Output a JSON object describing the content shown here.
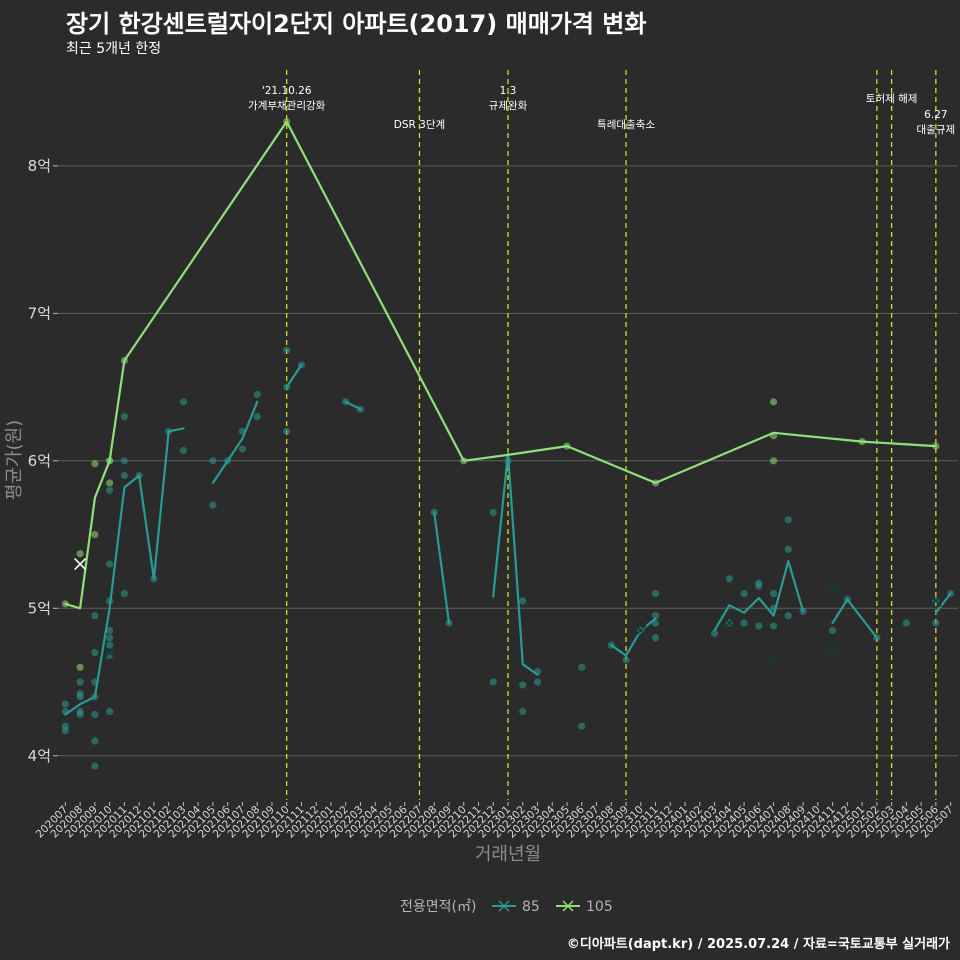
{
  "header": {
    "title": "장기 한강센트럴자이2단지 아파트(2017) 매매가격 변화",
    "subtitle": "최근 5개년 한정",
    "caption": "©디아파트(dapt.kr) / 2025.07.24 / 자료=국토교통부 실거래가"
  },
  "legend": {
    "title": "전용면적(㎡)"
  },
  "colors": {
    "s85": "#2a9a94",
    "s105": "#8fe07a",
    "vline": "#e8e81a",
    "grid": "#5e5e5e",
    "bg": "#2b2b2b"
  },
  "chart_data": {
    "type": "line",
    "xlabel": "거래년월",
    "ylabel": "평균가(원)",
    "ylim": [
      3.7,
      8.65
    ],
    "yticks": [
      4,
      5,
      6,
      7,
      8
    ],
    "ytick_labels": [
      "4억",
      "5억",
      "6억",
      "7억",
      "8억"
    ],
    "months": [
      "202007",
      "202008",
      "202009",
      "202010",
      "202011",
      "202012",
      "202101",
      "202102",
      "202103",
      "202104",
      "202105",
      "202106",
      "202107",
      "202108",
      "202109",
      "202110",
      "202111",
      "202112",
      "202201",
      "202202",
      "202203",
      "202204",
      "202205",
      "202206",
      "202207",
      "202208",
      "202209",
      "202210",
      "202211",
      "202212",
      "202301",
      "202302",
      "202303",
      "202304",
      "202305",
      "202306",
      "202307",
      "202308",
      "202309",
      "202310",
      "202311",
      "202312",
      "202401",
      "202402",
      "202403",
      "202404",
      "202405",
      "202406",
      "202407",
      "202408",
      "202409",
      "202410",
      "202411",
      "202412",
      "202501",
      "202502",
      "202503",
      "202504",
      "202505",
      "202506",
      "202507"
    ],
    "annotations": [
      {
        "x": "202110",
        "lines": [
          "'21.10.26",
          "가계부채관리강화"
        ],
        "level": 1
      },
      {
        "x": "202207",
        "lines": [
          "DSR 3단계"
        ],
        "level": 3
      },
      {
        "x": "202301",
        "lines": [
          "1.3",
          "규제완화"
        ],
        "level": 1
      },
      {
        "x": "202309",
        "lines": [
          "특례대출축소"
        ],
        "level": 3
      },
      {
        "x": "202503",
        "lines": [
          "토허제 해제"
        ],
        "level": 2
      },
      {
        "x": "202506",
        "lines": [
          "6.27",
          "대출규제"
        ],
        "level": 4
      }
    ],
    "extra_vlines": [
      "202502"
    ],
    "series": [
      {
        "name": "85",
        "key": "s85",
        "line": [
          [
            [
              "202007",
              4.28
            ],
            [
              "202008",
              4.35
            ],
            [
              "202009",
              4.4
            ],
            [
              "202010",
              5.0
            ],
            [
              "202011",
              5.82
            ],
            [
              "202012",
              5.9
            ],
            [
              "202101",
              5.2
            ],
            [
              "202102",
              6.2
            ],
            [
              "202103",
              6.22
            ]
          ],
          [
            [
              "202105",
              5.85
            ],
            [
              "202106",
              6.0
            ],
            [
              "202107",
              6.15
            ],
            [
              "202108",
              6.4
            ]
          ],
          [
            [
              "202110",
              6.5
            ],
            [
              "202111",
              6.65
            ]
          ],
          [
            [
              "202202",
              6.4
            ],
            [
              "202203",
              6.35
            ]
          ],
          [
            [
              "202208",
              5.65
            ],
            [
              "202209",
              4.9
            ]
          ],
          [
            [
              "202212",
              5.08
            ],
            [
              "202301",
              6.05
            ],
            [
              "202302",
              4.62
            ],
            [
              "202303",
              4.55
            ]
          ],
          [
            [
              "202308",
              4.75
            ],
            [
              "202309",
              4.68
            ],
            [
              "202310",
              4.85
            ],
            [
              "202311",
              4.93
            ]
          ],
          [
            [
              "202403",
              4.85
            ],
            [
              "202404",
              5.02
            ],
            [
              "202405",
              4.97
            ],
            [
              "202406",
              5.07
            ],
            [
              "202407",
              4.95
            ],
            [
              "202408",
              5.32
            ],
            [
              "202409",
              4.98
            ]
          ],
          [
            [
              "202411",
              4.9
            ],
            [
              "202412",
              5.06
            ],
            [
              "202502",
              4.8
            ]
          ],
          [
            [
              "202506",
              4.97
            ],
            [
              "202507",
              5.1
            ]
          ]
        ],
        "points": [
          [
            "202007",
            4.17
          ],
          [
            "202007",
            4.2
          ],
          [
            "202007",
            4.3
          ],
          [
            "202007",
            4.35
          ],
          [
            "202008",
            4.28
          ],
          [
            "202008",
            4.3
          ],
          [
            "202008",
            4.4
          ],
          [
            "202008",
            4.42
          ],
          [
            "202008",
            4.5
          ],
          [
            "202009",
            3.93
          ],
          [
            "202009",
            4.1
          ],
          [
            "202009",
            4.28
          ],
          [
            "202009",
            4.4
          ],
          [
            "202009",
            4.5
          ],
          [
            "202009",
            4.7
          ],
          [
            "202009",
            4.95
          ],
          [
            "202010",
            4.3
          ],
          [
            "202010",
            4.68
          ],
          [
            "202010",
            4.75
          ],
          [
            "202010",
            4.8
          ],
          [
            "202010",
            4.85
          ],
          [
            "202010",
            5.05
          ],
          [
            "202010",
            5.3
          ],
          [
            "202010",
            5.8
          ],
          [
            "202010",
            6.0
          ],
          [
            "202011",
            5.1
          ],
          [
            "202011",
            5.9
          ],
          [
            "202011",
            6.0
          ],
          [
            "202011",
            6.3
          ],
          [
            "202012",
            5.9
          ],
          [
            "202101",
            5.2
          ],
          [
            "202102",
            6.2
          ],
          [
            "202103",
            6.07
          ],
          [
            "202103",
            6.4
          ],
          [
            "202105",
            5.7
          ],
          [
            "202105",
            6.0
          ],
          [
            "202106",
            6.0
          ],
          [
            "202107",
            6.2
          ],
          [
            "202107",
            6.08
          ],
          [
            "202108",
            6.3
          ],
          [
            "202108",
            6.45
          ],
          [
            "202110",
            6.2
          ],
          [
            "202110",
            6.5
          ],
          [
            "202110",
            6.75
          ],
          [
            "202111",
            6.65
          ],
          [
            "202202",
            6.4
          ],
          [
            "202203",
            6.35
          ],
          [
            "202208",
            5.65
          ],
          [
            "202209",
            4.9
          ],
          [
            "202212",
            5.65
          ],
          [
            "202212",
            4.5
          ],
          [
            "202301",
            6.0
          ],
          [
            "202302",
            4.3
          ],
          [
            "202302",
            4.48
          ],
          [
            "202302",
            5.05
          ],
          [
            "202303",
            4.5
          ],
          [
            "202303",
            4.57
          ],
          [
            "202306",
            4.2
          ],
          [
            "202306",
            4.6
          ],
          [
            "202308",
            4.75
          ],
          [
            "202309",
            4.65
          ],
          [
            "202310",
            4.85
          ],
          [
            "202311",
            4.8
          ],
          [
            "202311",
            4.9
          ],
          [
            "202311",
            4.95
          ],
          [
            "202311",
            5.1
          ],
          [
            "202403",
            4.83
          ],
          [
            "202404",
            4.9
          ],
          [
            "202404",
            5.2
          ],
          [
            "202405",
            4.9
          ],
          [
            "202405",
            5.1
          ],
          [
            "202406",
            4.88
          ],
          [
            "202406",
            5.15
          ],
          [
            "202406",
            5.17
          ],
          [
            "202407",
            4.88
          ],
          [
            "202407",
            5.0
          ],
          [
            "202407",
            5.1
          ],
          [
            "202408",
            4.95
          ],
          [
            "202408",
            5.4
          ],
          [
            "202408",
            5.6
          ],
          [
            "202409",
            4.98
          ],
          [
            "202411",
            4.85
          ],
          [
            "202412",
            5.06
          ],
          [
            "202502",
            4.8
          ],
          [
            "202504",
            4.9
          ],
          [
            "202506",
            4.9
          ],
          [
            "202506",
            5.05
          ],
          [
            "202507",
            5.1
          ]
        ],
        "crosses": [
          [
            "202010",
            4.7
          ],
          [
            "202310",
            4.85
          ],
          [
            "202404",
            4.9
          ],
          [
            "202407",
            4.65
          ],
          [
            "202411",
            5.13
          ],
          [
            "202411",
            4.72
          ],
          [
            "202506",
            5.05
          ]
        ]
      },
      {
        "name": "105",
        "key": "s105",
        "line": [
          [
            [
              "202007",
              5.03
            ],
            [
              "202008",
              5.0
            ],
            [
              "202009",
              5.75
            ],
            [
              "202010",
              6.0
            ],
            [
              "202011",
              6.68
            ],
            [
              "202110",
              8.3
            ],
            [
              "202210",
              6.0
            ],
            [
              "202301",
              6.04
            ],
            [
              "202305",
              6.1
            ],
            [
              "202311",
              5.85
            ],
            [
              "202407",
              6.19
            ],
            [
              "202501",
              6.13
            ],
            [
              "202506",
              6.1
            ]
          ]
        ],
        "points": [
          [
            "202007",
            5.03
          ],
          [
            "202008",
            5.37
          ],
          [
            "202008",
            4.6
          ],
          [
            "202009",
            5.5
          ],
          [
            "202009",
            5.98
          ],
          [
            "202010",
            5.85
          ],
          [
            "202010",
            6.0
          ],
          [
            "202011",
            6.68
          ],
          [
            "202110",
            8.3
          ],
          [
            "202210",
            6.0
          ],
          [
            "202305",
            6.1
          ],
          [
            "202311",
            5.85
          ],
          [
            "202407",
            6.4
          ],
          [
            "202407",
            6.17
          ],
          [
            "202407",
            6.0
          ],
          [
            "202501",
            6.13
          ],
          [
            "202506",
            6.1
          ]
        ],
        "crosses": [
          [
            "202008",
            5.3
          ]
        ]
      }
    ]
  }
}
